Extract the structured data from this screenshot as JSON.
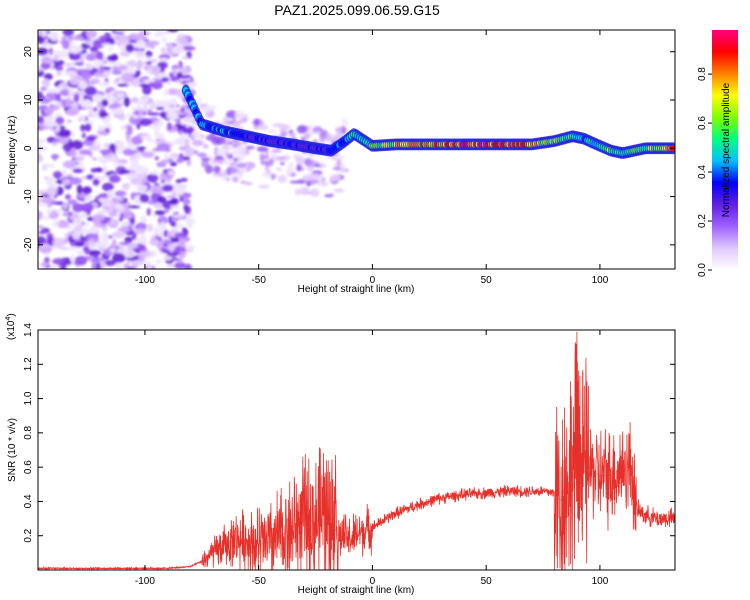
{
  "title": "PAZ1.2025.099.06.59.G15",
  "chart_data": [
    {
      "type": "heatmap",
      "xlabel": "Height of straight line (km)",
      "ylabel": "Frequency (Hz)",
      "xlim": [
        -147,
        133
      ],
      "ylim": [
        -25,
        24.5
      ],
      "xticks": [
        -100,
        -50,
        0,
        50,
        100
      ],
      "yticks": [
        -20,
        -10,
        0,
        10,
        20
      ],
      "colorbar": {
        "label": "Normalized spectral amplitude",
        "range": [
          0,
          0.98
        ],
        "ticks": [
          0.0,
          0.2,
          0.4,
          0.6,
          0.8
        ],
        "colors": [
          "#ffffff",
          "#e0c8ff",
          "#a060ff",
          "#6020e0",
          "#0000ff",
          "#00c0ff",
          "#00ff80",
          "#80ff00",
          "#ffff00",
          "#ff8000",
          "#ff0000",
          "#ff0080"
        ]
      },
      "ridge": {
        "x": [
          -82,
          -75,
          -65,
          -55,
          -45,
          -35,
          -25,
          -18,
          -12,
          -8,
          0,
          10,
          20,
          30,
          40,
          50,
          60,
          70,
          80,
          88,
          93,
          100,
          105,
          110,
          120,
          133
        ],
        "freq": [
          12,
          5,
          3.5,
          2.5,
          1.5,
          0.8,
          0,
          -0.5,
          1.5,
          3,
          0.5,
          0.8,
          0.8,
          0.8,
          0.8,
          0.8,
          0.8,
          0.8,
          1.5,
          2.5,
          2,
          0.5,
          -0.5,
          -1,
          0,
          0
        ],
        "amplitude": [
          0.45,
          0.4,
          0.4,
          0.35,
          0.3,
          0.32,
          0.3,
          0.35,
          0.4,
          0.5,
          0.55,
          0.7,
          0.75,
          0.8,
          0.9,
          0.9,
          0.85,
          0.8,
          0.6,
          0.55,
          0.45,
          0.5,
          0.6,
          0.5,
          0.6,
          0.9
        ]
      }
    },
    {
      "type": "line",
      "xlabel": "Height of straight line (km)",
      "ylabel": "SNR (10 * v/v)",
      "y_multiplier": "(x10",
      "y_multiplier_exp": "4",
      "y_multiplier_close": ")",
      "xlim": [
        -147,
        133
      ],
      "ylim": [
        0,
        1.4
      ],
      "xticks": [
        -100,
        -50,
        0,
        50,
        100
      ],
      "yticks": [
        0.2,
        0.4,
        0.6,
        0.8,
        1.0,
        1.2,
        1.4
      ],
      "series": [
        {
          "color": "#e8302a",
          "x": [
            -147,
            -120,
            -90,
            -80,
            -75,
            -70,
            -65,
            -60,
            -55,
            -50,
            -45,
            -40,
            -35,
            -30,
            -25,
            -20,
            -15,
            -10,
            -5,
            0,
            10,
            20,
            30,
            40,
            50,
            60,
            70,
            75,
            80,
            83,
            85,
            88,
            90,
            92,
            95,
            100,
            105,
            110,
            114,
            116,
            120,
            125,
            133
          ],
          "y": [
            0.01,
            0.01,
            0.01,
            0.02,
            0.05,
            0.1,
            0.14,
            0.18,
            0.17,
            0.15,
            0.16,
            0.2,
            0.25,
            0.3,
            0.28,
            0.35,
            0.2,
            0.18,
            0.22,
            0.25,
            0.33,
            0.38,
            0.42,
            0.44,
            0.45,
            0.46,
            0.46,
            0.46,
            0.45,
            0.4,
            0.5,
            0.6,
            0.65,
            0.55,
            0.6,
            0.55,
            0.55,
            0.6,
            0.6,
            0.35,
            0.32,
            0.3,
            0.3
          ]
        }
      ]
    }
  ]
}
